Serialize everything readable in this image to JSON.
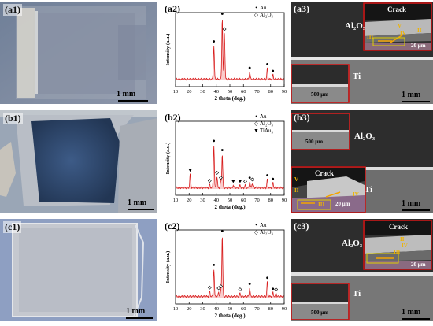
{
  "rows": [
    {
      "photo_label": "(a1)",
      "photo_scale": "1 mm",
      "xrd_label": "(a2)",
      "legend": [
        {
          "sym": "•",
          "text": "Au"
        },
        {
          "sym": "◇",
          "text": "Al₂O₃"
        }
      ],
      "sem_label": "(a3)",
      "sem_scale": "1 mm",
      "inset_top": {
        "crack": "Crack",
        "scale": "20 μm",
        "roman": [
          "V",
          "II",
          "III",
          "IV"
        ]
      },
      "inset_bottom": {
        "scale": "500 μm"
      },
      "sem_materials": {
        "upper": "Al₂O₃",
        "lower": "Ti"
      }
    },
    {
      "photo_label": "(b1)",
      "photo_scale": "1 mm",
      "xrd_label": "(b2)",
      "legend": [
        {
          "sym": "•",
          "text": "Au"
        },
        {
          "sym": "◇",
          "text": "Al₂O₃"
        },
        {
          "sym": "▼",
          "text": "TiAu₃"
        }
      ],
      "sem_label": "(b3)",
      "sem_scale": "1 mm",
      "inset_top": {
        "scale": "500 μm"
      },
      "inset_bottom": {
        "crack": "Crack",
        "scale": "20 μm",
        "roman": [
          "V",
          "II",
          "IV",
          "III"
        ]
      },
      "sem_materials": {
        "upper": "Al₂O₃",
        "lower": "Ti"
      }
    },
    {
      "photo_label": "(c1)",
      "photo_scale": "1 mm",
      "xrd_label": "(c2)",
      "legend": [
        {
          "sym": "•",
          "text": "Au"
        },
        {
          "sym": "◇",
          "text": "Al₂O₃"
        }
      ],
      "sem_label": "(c3)",
      "sem_scale": "1 mm",
      "inset_top": {
        "crack": "Crack",
        "scale": "20 μm",
        "roman": [
          "IV",
          "II",
          "III"
        ]
      },
      "inset_bottom": {
        "scale": "500 μm"
      },
      "sem_materials": {
        "upper": "Al₂O₃",
        "lower": "Ti"
      }
    }
  ],
  "chart_data": [
    {
      "type": "line",
      "xlabel": "2 theta (deg.)",
      "ylabel": "Intensity (a.u.)",
      "xlim": [
        10,
        90
      ],
      "xticks": [
        10,
        20,
        30,
        40,
        50,
        60,
        70,
        80,
        90
      ],
      "peaks": [
        {
          "x": 38.2,
          "h": 0.55,
          "marker": "Au"
        },
        {
          "x": 44.4,
          "h": 1.0,
          "marker": "Au"
        },
        {
          "x": 46.0,
          "h": 0.75,
          "marker": "Al2O3"
        },
        {
          "x": 64.6,
          "h": 0.12,
          "marker": "Au"
        },
        {
          "x": 77.6,
          "h": 0.18,
          "marker": "Au"
        },
        {
          "x": 81.7,
          "h": 0.07,
          "marker": "Au"
        }
      ]
    },
    {
      "type": "line",
      "xlabel": "2 theta (deg.)",
      "ylabel": "Intensity (a.u.)",
      "xlim": [
        10,
        90
      ],
      "xticks": [
        10,
        20,
        30,
        40,
        50,
        60,
        70,
        80,
        90
      ],
      "peaks": [
        {
          "x": 20.8,
          "h": 0.22,
          "marker": "TiAu3"
        },
        {
          "x": 35.1,
          "h": 0.05,
          "marker": "Al2O3"
        },
        {
          "x": 38.2,
          "h": 0.7,
          "marker": "Au"
        },
        {
          "x": 40.5,
          "h": 0.18,
          "marker": "Al2O3"
        },
        {
          "x": 43.3,
          "h": 0.1,
          "marker": "Al2O3"
        },
        {
          "x": 44.4,
          "h": 0.55,
          "marker": "Au"
        },
        {
          "x": 52.5,
          "h": 0.04,
          "marker": "TiAu3"
        },
        {
          "x": 57.5,
          "h": 0.04,
          "marker": "TiAu3"
        },
        {
          "x": 61.3,
          "h": 0.04,
          "marker": "Al2O3"
        },
        {
          "x": 64.6,
          "h": 0.1,
          "marker": "Au"
        },
        {
          "x": 66.5,
          "h": 0.07,
          "marker": "Al2O3"
        },
        {
          "x": 77.6,
          "h": 0.14,
          "marker": "Au"
        },
        {
          "x": 81.7,
          "h": 0.08,
          "marker": "Au"
        }
      ]
    },
    {
      "type": "line",
      "xlabel": "2 theta (deg.)",
      "ylabel": "Intensity (a.u.)",
      "xlim": [
        10,
        90
      ],
      "xticks": [
        10,
        20,
        30,
        40,
        50,
        60,
        70,
        80,
        90
      ],
      "peaks": [
        {
          "x": 35.1,
          "h": 0.08,
          "marker": "Al2O3"
        },
        {
          "x": 38.2,
          "h": 0.45,
          "marker": "Au"
        },
        {
          "x": 41.7,
          "h": 0.07,
          "marker": "Al2O3"
        },
        {
          "x": 43.4,
          "h": 0.1,
          "marker": "Al2O3"
        },
        {
          "x": 44.4,
          "h": 1.0,
          "marker": "Au"
        },
        {
          "x": 57.5,
          "h": 0.05,
          "marker": "Al2O3"
        },
        {
          "x": 64.6,
          "h": 0.14,
          "marker": "Au"
        },
        {
          "x": 77.6,
          "h": 0.24,
          "marker": "Au"
        },
        {
          "x": 81.7,
          "h": 0.06,
          "marker": "Au"
        },
        {
          "x": 84.0,
          "h": 0.05,
          "marker": "Al2O3"
        }
      ]
    }
  ],
  "colors": {
    "trace": "#d81e1e",
    "fill": "#f6b8b8",
    "sem_dark": "#2a2a2a",
    "sem_mid": "#777777",
    "sem_light": "#a4a4a4",
    "roman": "#f0b400",
    "arrow": "#f4a400"
  }
}
